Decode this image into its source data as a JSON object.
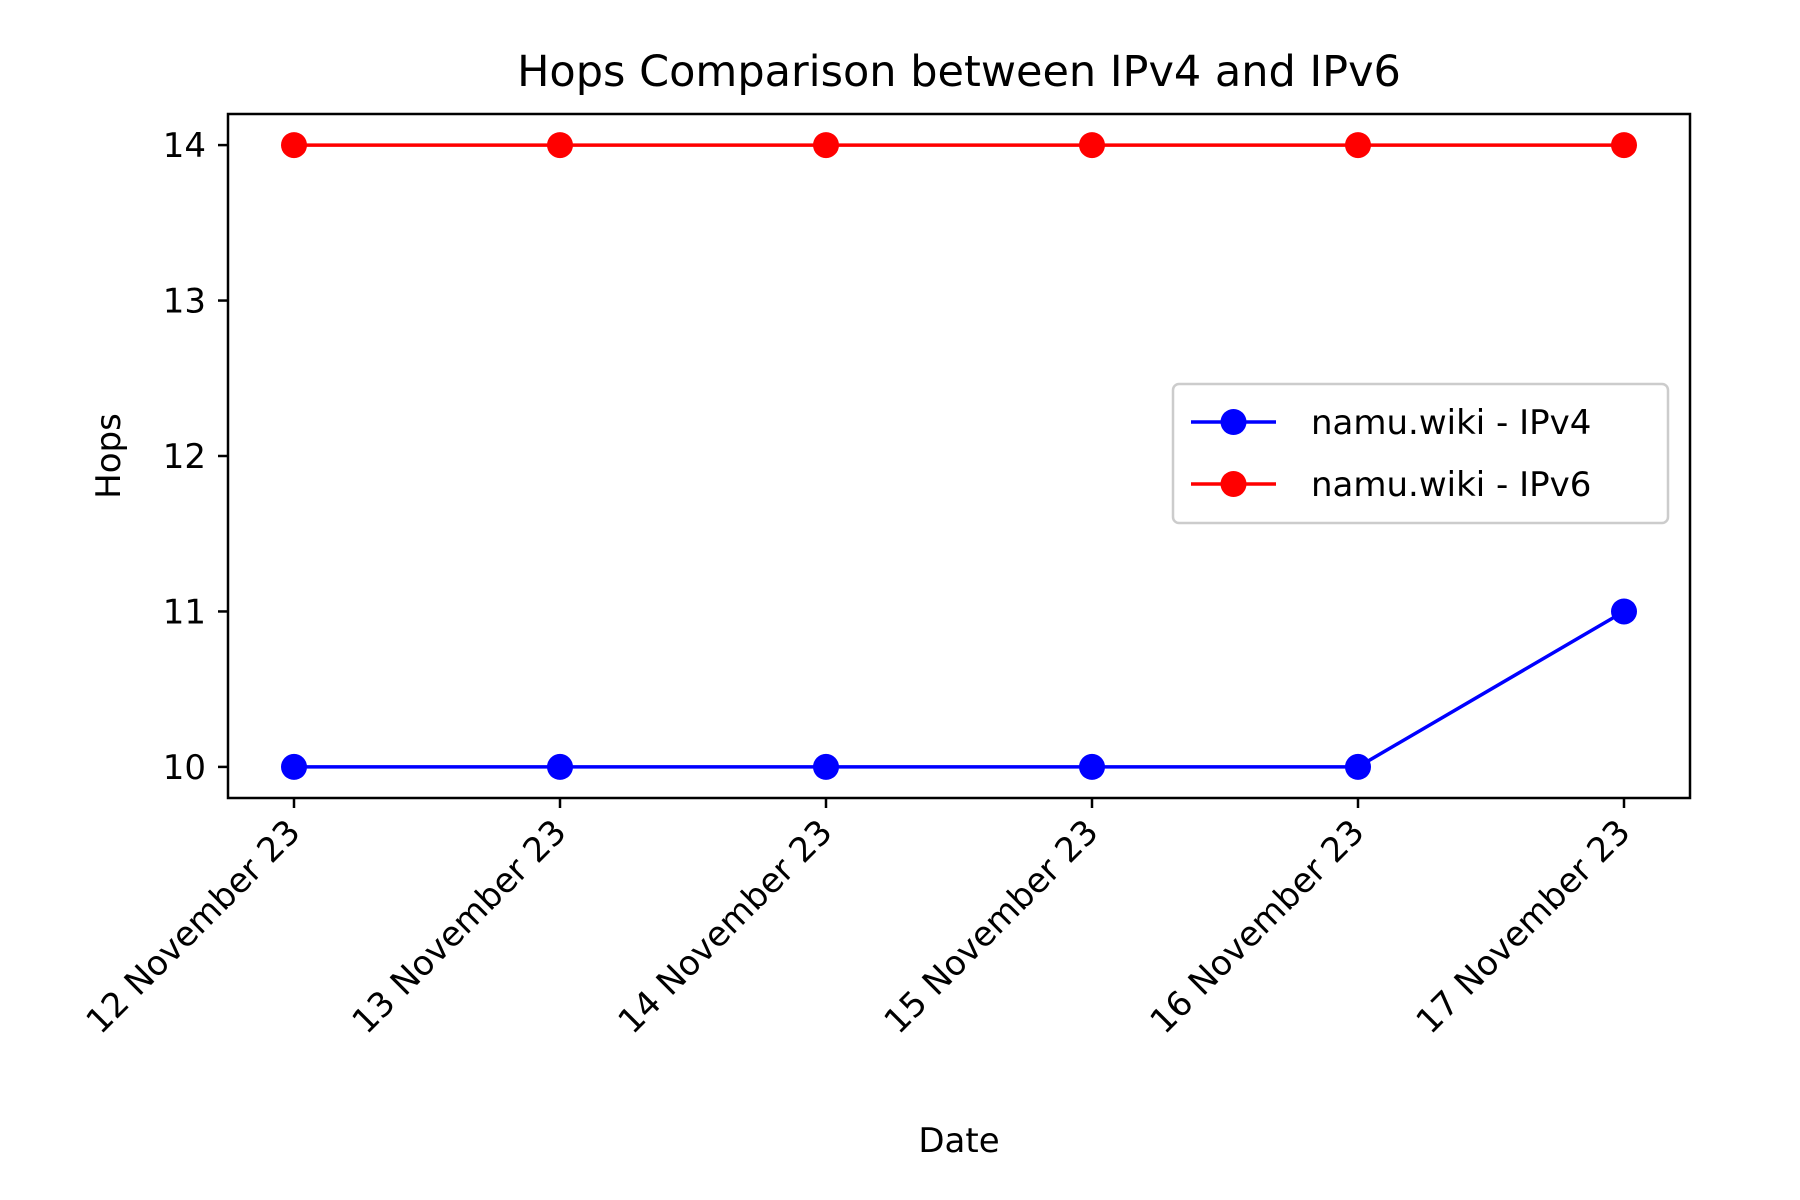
{
  "chart_data": {
    "type": "line",
    "title": "Hops Comparison between IPv4 and IPv6",
    "xlabel": "Date",
    "ylabel": "Hops",
    "categories": [
      "12 November 23",
      "13 November 23",
      "14 November 23",
      "15 November 23",
      "16 November 23",
      "17 November 23"
    ],
    "yticks": [
      "10",
      "11",
      "12",
      "13",
      "14"
    ],
    "ylim": [
      9.8,
      14.2
    ],
    "grid": false,
    "legend_position": "center-right",
    "series": [
      {
        "name": "namu.wiki - IPv4",
        "color": "#0000ff",
        "marker": "circle",
        "values": [
          10,
          10,
          10,
          10,
          10,
          11
        ]
      },
      {
        "name": "namu.wiki - IPv6",
        "color": "#ff0000",
        "marker": "circle",
        "values": [
          14,
          14,
          14,
          14,
          14,
          14
        ]
      }
    ]
  }
}
